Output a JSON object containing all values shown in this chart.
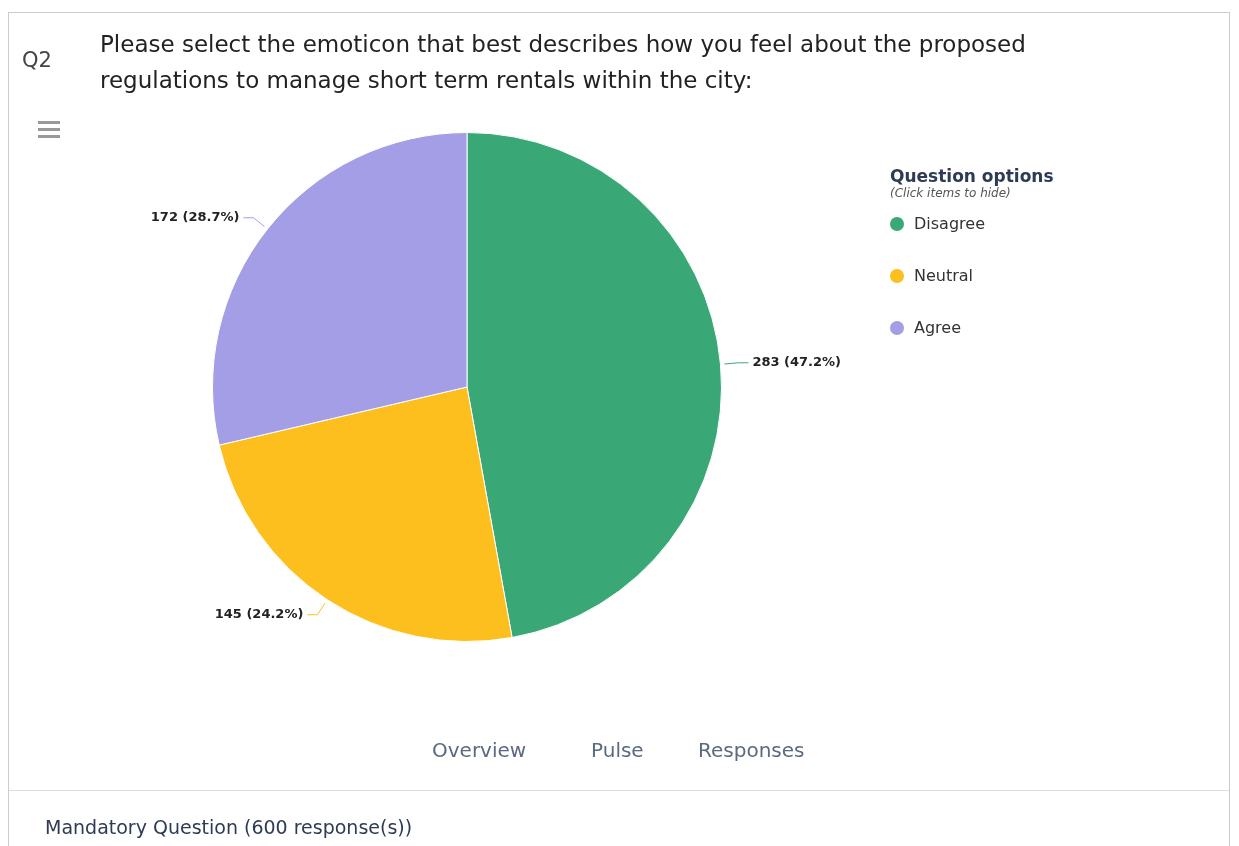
{
  "chart_data": {
    "type": "pie",
    "title": "Please select the emoticon that best describes how you feel about the proposed regulations to manage short term rentals within the city:",
    "categories": [
      "Disagree",
      "Neutral",
      "Agree"
    ],
    "values": [
      283,
      145,
      172
    ],
    "colors": [
      "#3aa876",
      "#fcbf1e",
      "#a49ee6"
    ],
    "value_labels": [
      "283 (47.2%)",
      "145 (24.2%)",
      "172 (28.7%)"
    ],
    "legend": "top right",
    "legend_title": "Question options",
    "annotations": [
      "Q2",
      "(Click items to hide)",
      "Overview",
      "Pulse",
      "Responses",
      "Mandatory Question (600 response(s))"
    ]
  }
}
